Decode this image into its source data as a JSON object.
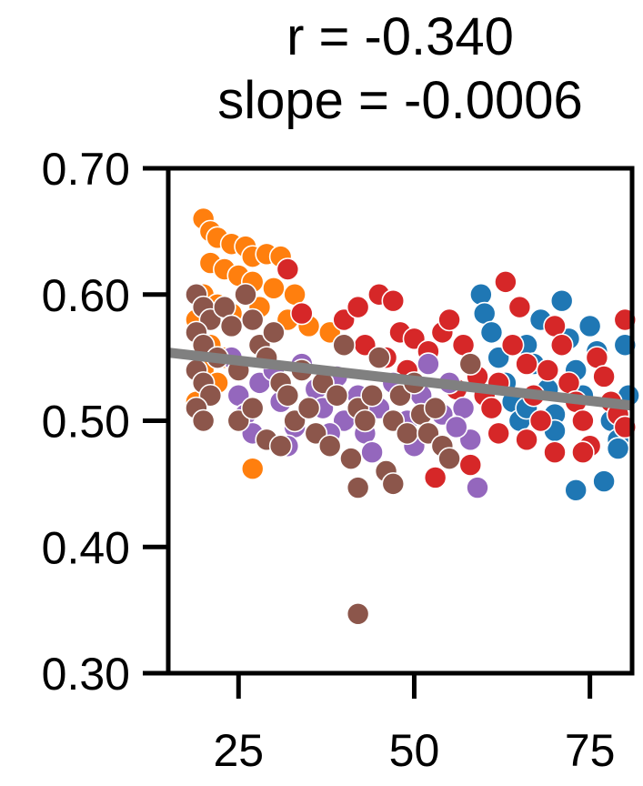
{
  "chart_data": {
    "type": "scatter",
    "title_lines": [
      "r = -0.340",
      "slope = -0.0006"
    ],
    "xlabel": "",
    "ylabel": "",
    "xlim": [
      15,
      81
    ],
    "ylim": [
      0.3,
      0.7
    ],
    "x_ticks": [
      25,
      50,
      75
    ],
    "x_tick_labels": [
      "25",
      "50",
      "75"
    ],
    "y_ticks": [
      0.3,
      0.4,
      0.5,
      0.6,
      0.7
    ],
    "y_tick_labels": [
      "0.30",
      "0.40",
      "0.50",
      "0.60",
      "0.70"
    ],
    "grid": false,
    "legend": "none",
    "trend_line": {
      "x": [
        15,
        81
      ],
      "y": [
        0.554,
        0.512
      ],
      "color": "#808080"
    },
    "series": [
      {
        "color": "#1f77b4",
        "points": [
          [
            59.5,
            0.6
          ],
          [
            60,
            0.585
          ],
          [
            61,
            0.57
          ],
          [
            62,
            0.55
          ],
          [
            63,
            0.53
          ],
          [
            64,
            0.515
          ],
          [
            65,
            0.5
          ],
          [
            66,
            0.56
          ],
          [
            67,
            0.545
          ],
          [
            68,
            0.58
          ],
          [
            69,
            0.525
          ],
          [
            70,
            0.505
          ],
          [
            71,
            0.595
          ],
          [
            72,
            0.565
          ],
          [
            73,
            0.54
          ],
          [
            74,
            0.52
          ],
          [
            75,
            0.575
          ],
          [
            76,
            0.555
          ],
          [
            77,
            0.535
          ],
          [
            78,
            0.5
          ],
          [
            79,
            0.485
          ],
          [
            80,
            0.56
          ],
          [
            80.5,
            0.52
          ],
          [
            73,
            0.445
          ],
          [
            77,
            0.452
          ],
          [
            79,
            0.478
          ],
          [
            70,
            0.492
          ],
          [
            66,
            0.51
          ]
        ]
      },
      {
        "color": "#ff7f0e",
        "points": [
          [
            20,
            0.66
          ],
          [
            21,
            0.65
          ],
          [
            22,
            0.645
          ],
          [
            24,
            0.64
          ],
          [
            26,
            0.638
          ],
          [
            27,
            0.63
          ],
          [
            29,
            0.632
          ],
          [
            31,
            0.63
          ],
          [
            21,
            0.625
          ],
          [
            23,
            0.62
          ],
          [
            25,
            0.615
          ],
          [
            27,
            0.61
          ],
          [
            30,
            0.605
          ],
          [
            33,
            0.6
          ],
          [
            20,
            0.6
          ],
          [
            22,
            0.592
          ],
          [
            24,
            0.585
          ],
          [
            28,
            0.59
          ],
          [
            32,
            0.58
          ],
          [
            35,
            0.575
          ],
          [
            38,
            0.57
          ],
          [
            19,
            0.58
          ],
          [
            21,
            0.56
          ],
          [
            23,
            0.55
          ],
          [
            20,
            0.54
          ],
          [
            22,
            0.53
          ],
          [
            19,
            0.515
          ],
          [
            20,
            0.5
          ],
          [
            27,
            0.462
          ]
        ]
      },
      {
        "color": "#d62728",
        "points": [
          [
            32,
            0.62
          ],
          [
            34,
            0.585
          ],
          [
            40,
            0.58
          ],
          [
            42,
            0.59
          ],
          [
            45,
            0.6
          ],
          [
            47,
            0.595
          ],
          [
            43,
            0.56
          ],
          [
            46,
            0.55
          ],
          [
            48,
            0.57
          ],
          [
            50,
            0.565
          ],
          [
            52,
            0.555
          ],
          [
            54,
            0.57
          ],
          [
            55,
            0.58
          ],
          [
            57,
            0.56
          ],
          [
            58,
            0.545
          ],
          [
            59,
            0.535
          ],
          [
            60,
            0.52
          ],
          [
            61,
            0.51
          ],
          [
            62,
            0.53
          ],
          [
            63,
            0.61
          ],
          [
            64,
            0.56
          ],
          [
            65,
            0.59
          ],
          [
            66,
            0.545
          ],
          [
            67,
            0.52
          ],
          [
            68,
            0.5
          ],
          [
            69,
            0.54
          ],
          [
            70,
            0.575
          ],
          [
            71,
            0.56
          ],
          [
            72,
            0.53
          ],
          [
            73,
            0.515
          ],
          [
            74,
            0.5
          ],
          [
            75,
            0.48
          ],
          [
            76,
            0.55
          ],
          [
            77,
            0.535
          ],
          [
            78,
            0.515
          ],
          [
            79,
            0.505
          ],
          [
            80,
            0.58
          ],
          [
            80,
            0.495
          ],
          [
            53,
            0.455
          ],
          [
            58,
            0.465
          ],
          [
            62,
            0.49
          ],
          [
            66,
            0.485
          ],
          [
            70,
            0.475
          ],
          [
            74,
            0.475
          ],
          [
            44,
            0.52
          ],
          [
            49,
            0.54
          ],
          [
            56,
            0.525
          ]
        ]
      },
      {
        "color": "#9467bd",
        "points": [
          [
            24,
            0.55
          ],
          [
            25,
            0.52
          ],
          [
            26,
            0.505
          ],
          [
            28,
            0.53
          ],
          [
            30,
            0.54
          ],
          [
            31,
            0.515
          ],
          [
            33,
            0.495
          ],
          [
            34,
            0.545
          ],
          [
            36,
            0.525
          ],
          [
            37,
            0.51
          ],
          [
            39,
            0.535
          ],
          [
            40,
            0.5
          ],
          [
            42,
            0.52
          ],
          [
            43,
            0.49
          ],
          [
            45,
            0.51
          ],
          [
            47,
            0.53
          ],
          [
            49,
            0.5
          ],
          [
            51,
            0.52
          ],
          [
            52,
            0.545
          ],
          [
            54,
            0.505
          ],
          [
            55,
            0.53
          ],
          [
            57,
            0.51
          ],
          [
            58,
            0.485
          ],
          [
            59,
            0.447
          ],
          [
            38,
            0.49
          ],
          [
            44,
            0.475
          ],
          [
            50,
            0.48
          ],
          [
            56,
            0.495
          ],
          [
            27,
            0.49
          ],
          [
            32,
            0.48
          ]
        ]
      },
      {
        "color": "#8c564b",
        "points": [
          [
            19,
            0.6
          ],
          [
            20,
            0.59
          ],
          [
            21,
            0.58
          ],
          [
            19,
            0.57
          ],
          [
            20,
            0.56
          ],
          [
            22,
            0.55
          ],
          [
            19,
            0.54
          ],
          [
            20,
            0.53
          ],
          [
            21,
            0.52
          ],
          [
            19,
            0.51
          ],
          [
            20,
            0.5
          ],
          [
            23,
            0.59
          ],
          [
            24,
            0.575
          ],
          [
            26,
            0.6
          ],
          [
            27,
            0.58
          ],
          [
            28,
            0.56
          ],
          [
            25,
            0.54
          ],
          [
            29,
            0.55
          ],
          [
            30,
            0.57
          ],
          [
            31,
            0.53
          ],
          [
            32,
            0.52
          ],
          [
            33,
            0.5
          ],
          [
            34,
            0.54
          ],
          [
            35,
            0.51
          ],
          [
            36,
            0.49
          ],
          [
            37,
            0.53
          ],
          [
            38,
            0.48
          ],
          [
            39,
            0.52
          ],
          [
            40,
            0.56
          ],
          [
            41,
            0.47
          ],
          [
            42,
            0.447
          ],
          [
            42,
            0.51
          ],
          [
            43,
            0.5
          ],
          [
            44,
            0.52
          ],
          [
            45,
            0.55
          ],
          [
            46,
            0.46
          ],
          [
            47,
            0.45
          ],
          [
            47,
            0.5
          ],
          [
            48,
            0.52
          ],
          [
            49,
            0.49
          ],
          [
            50,
            0.53
          ],
          [
            51,
            0.505
          ],
          [
            52,
            0.49
          ],
          [
            53,
            0.51
          ],
          [
            54,
            0.48
          ],
          [
            55,
            0.47
          ],
          [
            58,
            0.545
          ],
          [
            25,
            0.5
          ],
          [
            27,
            0.51
          ],
          [
            29,
            0.485
          ],
          [
            31,
            0.48
          ],
          [
            42,
            0.347
          ]
        ]
      }
    ]
  }
}
